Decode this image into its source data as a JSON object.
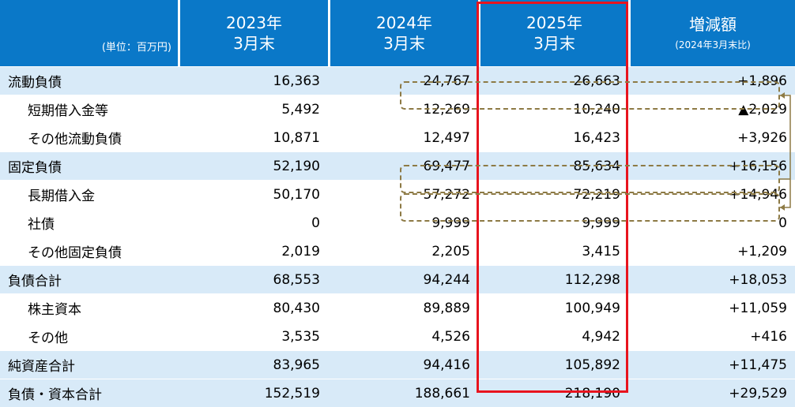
{
  "header": {
    "unit": "(単位：百万円)",
    "col1": [
      "2023年",
      "3月末"
    ],
    "col2": [
      "2024年",
      "3月末"
    ],
    "col3": [
      "2025年",
      "3月末"
    ],
    "col4_title": "増減額",
    "col4_sub": "(2024年3月末比)"
  },
  "rows": [
    {
      "label": "流動負債",
      "v": [
        "16,363",
        "24,767",
        "26,663",
        "+1,896"
      ]
    },
    {
      "label": "短期借入金等",
      "v": [
        "5,492",
        "12,269",
        "10,240",
        "▲2,029"
      ]
    },
    {
      "label": "その他流動負債",
      "v": [
        "10,871",
        "12,497",
        "16,423",
        "+3,926"
      ]
    },
    {
      "label": "固定負債",
      "v": [
        "52,190",
        "69,477",
        "85,634",
        "+16,156"
      ]
    },
    {
      "label": "長期借入金",
      "v": [
        "50,170",
        "57,272",
        "72,219",
        "+14,946"
      ]
    },
    {
      "label": "社債",
      "v": [
        "0",
        "9,999",
        "9,999",
        "0"
      ]
    },
    {
      "label": "その他固定負債",
      "v": [
        "2,019",
        "2,205",
        "3,415",
        "+1,209"
      ]
    },
    {
      "label": "負債合計",
      "v": [
        "68,553",
        "94,244",
        "112,298",
        "+18,053"
      ]
    },
    {
      "label": "株主資本",
      "v": [
        "80,430",
        "89,889",
        "100,949",
        "+11,059"
      ]
    },
    {
      "label": "その他",
      "v": [
        "3,535",
        "4,526",
        "4,942",
        "+416"
      ]
    },
    {
      "label": "純資産合計",
      "v": [
        "83,965",
        "94,416",
        "105,892",
        "+11,475"
      ]
    },
    {
      "label": "負債・資本合計",
      "v": [
        "152,519",
        "188,661",
        "218,190",
        "+29,529"
      ]
    }
  ],
  "colors": {
    "header": "#0a78c8",
    "band": "#d8eaf8",
    "highlight": "#e8141e",
    "dash": "#8d7a45"
  }
}
